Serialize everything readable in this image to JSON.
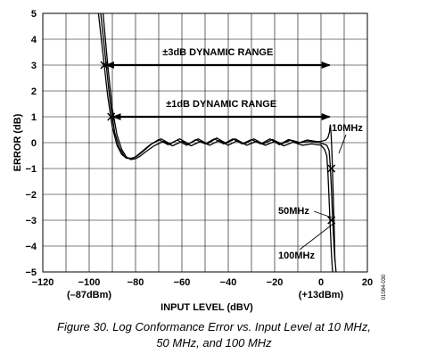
{
  "chart_data": {
    "type": "line",
    "title": "",
    "xlabel": "INPUT LEVEL (dBV)",
    "ylabel": "ERROR (dB)",
    "xlim": [
      -120,
      20
    ],
    "ylim": [
      -5,
      5
    ],
    "xticks": [
      -120,
      -100,
      -80,
      -60,
      -40,
      -20,
      0,
      20
    ],
    "yticks": [
      -5,
      -4,
      -3,
      -2,
      -1,
      0,
      1,
      2,
      3,
      4,
      5
    ],
    "grid": true,
    "x_subnotes": [
      {
        "x": -100,
        "text": "(–87dBm)"
      },
      {
        "x": 0,
        "text": "(+13dBm)"
      }
    ],
    "series": [
      {
        "name": "10MHz",
        "x": [
          -96,
          -94,
          -92,
          -90,
          -88,
          -86,
          -84,
          -82,
          -80,
          -78,
          -74,
          -70,
          -66,
          -62,
          -58,
          -54,
          -50,
          -46,
          -42,
          -38,
          -34,
          -30,
          -26,
          -22,
          -18,
          -14,
          -10,
          -6,
          -2,
          0,
          2,
          3,
          3.6,
          4,
          4.4,
          4.8,
          5.2,
          5.6,
          6,
          6.5
        ],
        "y": [
          5.0,
          3.4,
          1.8,
          0.6,
          -0.1,
          -0.45,
          -0.6,
          -0.62,
          -0.55,
          -0.4,
          -0.1,
          0.12,
          -0.08,
          0.1,
          -0.1,
          0.12,
          -0.05,
          0.15,
          -0.05,
          0.15,
          -0.05,
          0.12,
          -0.05,
          0.15,
          -0.08,
          0.12,
          -0.02,
          0.1,
          0.05,
          0.05,
          0.1,
          0.2,
          0.4,
          0.7,
          0.3,
          -0.6,
          -1.8,
          -3.0,
          -4.5,
          -5.0
        ]
      },
      {
        "name": "50MHz",
        "x": [
          -95,
          -93,
          -91,
          -89,
          -87,
          -85,
          -83,
          -81,
          -79,
          -77,
          -73,
          -69,
          -65,
          -61,
          -57,
          -53,
          -49,
          -45,
          -41,
          -37,
          -33,
          -29,
          -25,
          -21,
          -17,
          -13,
          -9,
          -5,
          -1,
          1,
          2.5,
          3.5,
          4,
          4.5,
          5,
          5.5,
          6
        ],
        "y": [
          5.0,
          3.3,
          1.6,
          0.4,
          -0.2,
          -0.5,
          -0.6,
          -0.6,
          -0.5,
          -0.35,
          -0.05,
          0.15,
          -0.05,
          0.15,
          -0.05,
          0.15,
          -0.05,
          0.18,
          -0.02,
          0.15,
          -0.05,
          0.15,
          -0.05,
          0.12,
          -0.05,
          0.1,
          0.0,
          0.05,
          0.0,
          -0.05,
          -0.1,
          -0.3,
          -0.9,
          -1.8,
          -2.9,
          -3.8,
          -4.6
        ]
      },
      {
        "name": "100MHz",
        "x": [
          -94,
          -92,
          -90,
          -88,
          -86,
          -84,
          -82,
          -80,
          -78,
          -76,
          -72,
          -68,
          -64,
          -60,
          -56,
          -52,
          -48,
          -44,
          -40,
          -36,
          -32,
          -28,
          -24,
          -20,
          -16,
          -12,
          -8,
          -4,
          0,
          1.5,
          2.5,
          3,
          3.5,
          4,
          4.5,
          5
        ],
        "y": [
          5.0,
          3.0,
          1.3,
          0.3,
          -0.25,
          -0.55,
          -0.65,
          -0.62,
          -0.52,
          -0.38,
          -0.12,
          0.05,
          -0.12,
          0.05,
          -0.12,
          0.05,
          -0.1,
          0.08,
          -0.1,
          0.08,
          -0.1,
          0.05,
          -0.1,
          0.05,
          -0.12,
          0.02,
          -0.1,
          -0.05,
          -0.1,
          -0.25,
          -0.5,
          -1.2,
          -2.2,
          -3.3,
          -4.3,
          -5.0
        ]
      }
    ],
    "markers": [
      {
        "x": -93.5,
        "y": 3
      },
      {
        "x": -90.5,
        "y": 1
      },
      {
        "x": 4.5,
        "y": -1
      },
      {
        "x": 4.5,
        "y": -3
      }
    ],
    "range_arrows": [
      {
        "label": "±3dB DYNAMIC RANGE",
        "y": 3,
        "x_start": -93.5,
        "x_end": 4.5
      },
      {
        "label": "±1dB DYNAMIC RANGE",
        "y": 1,
        "x_start": -90.5,
        "x_end": 4.5
      }
    ],
    "curve_labels": [
      {
        "text": "10MHz",
        "x": 5.2,
        "y": -0.6
      },
      {
        "text": "50MHz",
        "x": 4.5,
        "y": -3.0
      },
      {
        "text": "100MHz",
        "x": 4.6,
        "y": -3.05
      }
    ]
  },
  "doc_id": "01084-030",
  "caption": {
    "line1": "Figure 30. Log Conformance Error vs. Input Level at 10 MHz,",
    "line2": "50 MHz, and 100 MHz"
  }
}
